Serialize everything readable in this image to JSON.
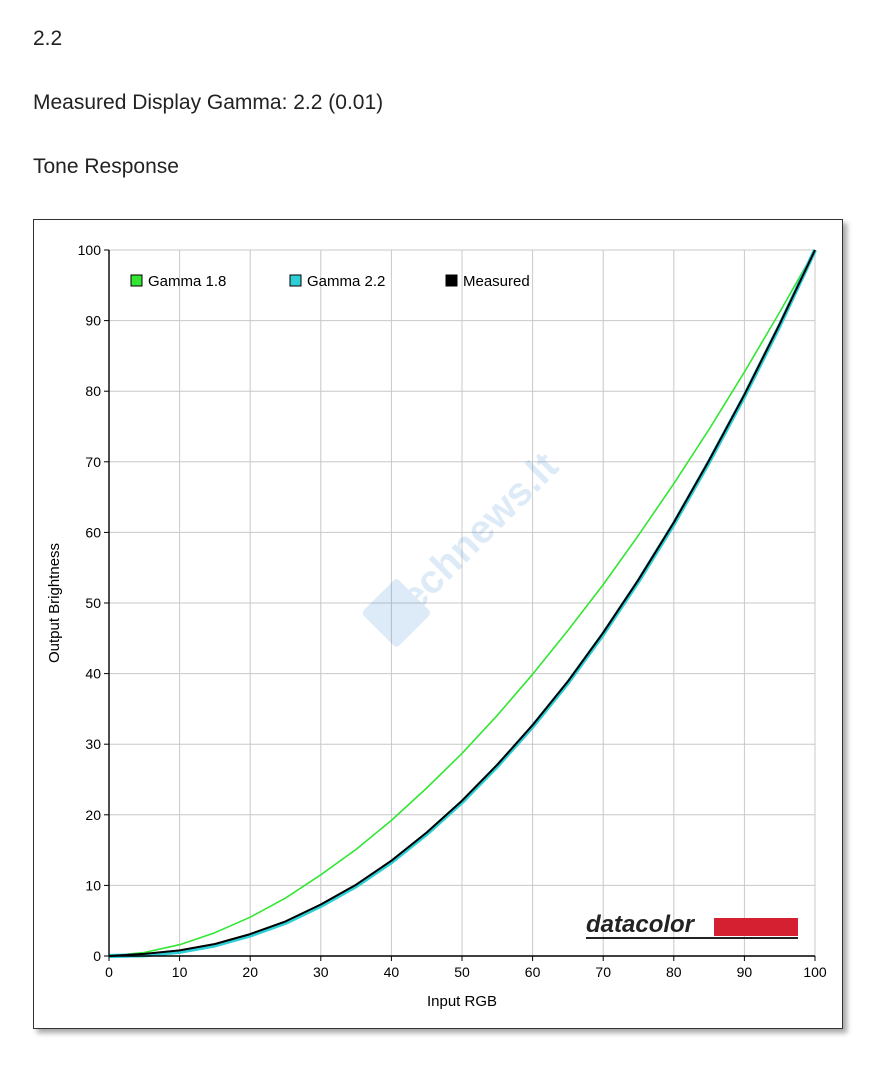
{
  "heading": "2.2",
  "measured_line": "Measured Display Gamma: 2.2 (0.01)",
  "section_title": "Tone Response",
  "watermark": "Technews.lt",
  "colors": {
    "gamma18": "#33e633",
    "gamma22": "#2ccfd6",
    "measured": "#000000",
    "grid": "#c8c8c8",
    "brand_bar": "#d42030"
  },
  "chart_data": {
    "type": "line",
    "title": "",
    "xlabel": "Input RGB",
    "ylabel": "Output Brightness",
    "xlim": [
      0,
      100
    ],
    "ylim": [
      0,
      100
    ],
    "x_ticks": [
      0,
      10,
      20,
      30,
      40,
      50,
      60,
      70,
      80,
      90,
      100
    ],
    "y_ticks": [
      0,
      10,
      20,
      30,
      40,
      50,
      60,
      70,
      80,
      90,
      100
    ],
    "grid": true,
    "legend_position": "top-left",
    "brand_logo": "datacolor",
    "x": [
      0,
      5,
      10,
      15,
      20,
      25,
      30,
      35,
      40,
      45,
      50,
      55,
      60,
      65,
      70,
      75,
      80,
      85,
      90,
      95,
      100
    ],
    "series": [
      {
        "name": "Gamma 1.8",
        "color_key": "gamma18",
        "values": [
          0,
          0.5,
          1.6,
          3.3,
          5.5,
          8.2,
          11.5,
          15.1,
          19.2,
          23.8,
          28.7,
          34.1,
          39.9,
          46.1,
          52.6,
          59.6,
          66.9,
          74.6,
          82.7,
          91.2,
          100
        ]
      },
      {
        "name": "Gamma 2.2",
        "color_key": "gamma22",
        "values": [
          0,
          0.1,
          0.6,
          1.5,
          2.9,
          4.7,
          7.1,
          9.9,
          13.3,
          17.3,
          21.8,
          26.9,
          32.5,
          38.7,
          45.6,
          53.1,
          61.2,
          70.0,
          79.3,
          89.3,
          100
        ]
      },
      {
        "name": "Measured",
        "color_key": "measured",
        "values": [
          0,
          0.3,
          0.8,
          1.7,
          3.1,
          4.9,
          7.3,
          10.1,
          13.5,
          17.5,
          22.0,
          27.1,
          32.7,
          38.9,
          45.8,
          53.3,
          61.4,
          70.2,
          79.5,
          89.5,
          100
        ]
      }
    ]
  }
}
